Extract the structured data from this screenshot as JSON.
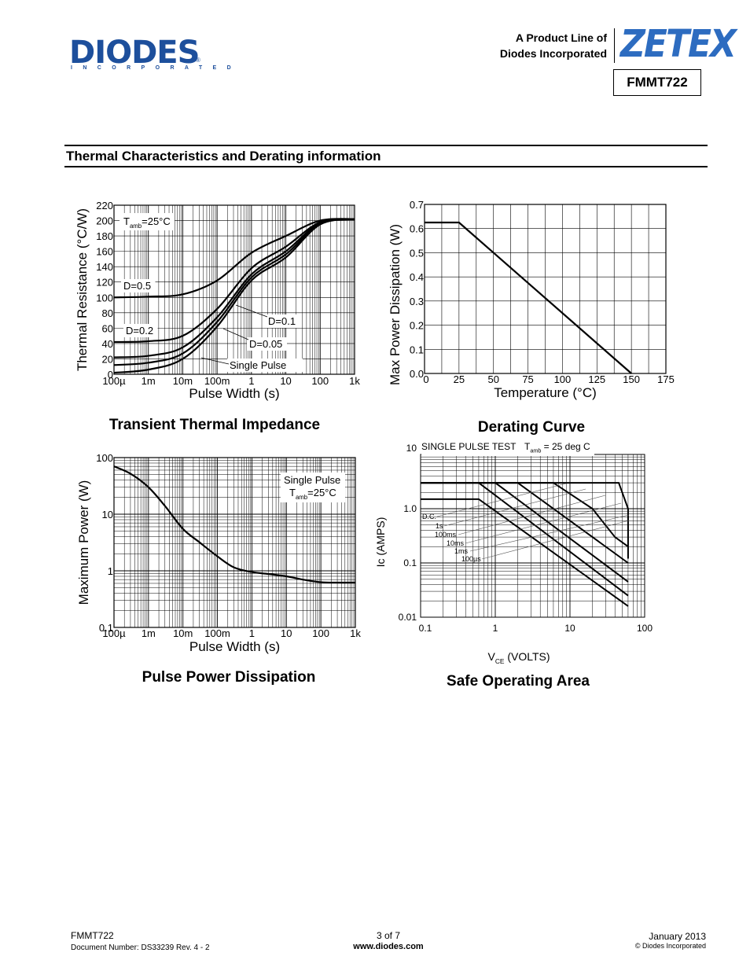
{
  "header": {
    "logo_text": "DIODES",
    "logo_subtext": "INCORPORATED",
    "logo_registered": "®",
    "product_line_1": "A Product Line of",
    "product_line_2": "Diodes Incorporated",
    "brand": "ZETEX",
    "part_number": "FMMT722"
  },
  "section_title": "Thermal Characteristics and Derating information",
  "colors": {
    "diodes_blue": "#1d4f9c",
    "zetex_blue": "#2d6cc0",
    "grid": "#000000"
  },
  "chart_data": [
    {
      "id": "transient_thermal_impedance",
      "type": "line",
      "title": "Transient Thermal Impedance",
      "xlabel": "Pulse Width (s)",
      "ylabel": "Thermal Resistance (°C/W)",
      "x_scale": "log",
      "xlim": [
        0.0001,
        1000
      ],
      "ylim": [
        0,
        220
      ],
      "x_tick_labels": [
        "100µ",
        "1m",
        "10m",
        "100m",
        "1",
        "10",
        "100",
        "1k"
      ],
      "y_ticks": [
        0,
        20,
        40,
        60,
        80,
        100,
        120,
        140,
        160,
        180,
        200,
        220
      ],
      "condition": {
        "symbol": "T",
        "subscript": "amb",
        "text": "=25°C"
      },
      "series": [
        {
          "name": "D=0.5",
          "x": [
            0.0001,
            0.001,
            0.01,
            0.1,
            1,
            10,
            100,
            1000
          ],
          "y": [
            100,
            101,
            104,
            122,
            158,
            180,
            200,
            202
          ]
        },
        {
          "name": "D=0.2",
          "x": [
            0.0001,
            0.001,
            0.01,
            0.1,
            1,
            10,
            100,
            1000
          ],
          "y": [
            42,
            43,
            50,
            85,
            138,
            166,
            198,
            202
          ]
        },
        {
          "name": "D=0.1",
          "x": [
            0.0001,
            0.001,
            0.01,
            0.1,
            1,
            10,
            100,
            1000
          ],
          "y": [
            22,
            24,
            35,
            74,
            130,
            160,
            197,
            202
          ]
        },
        {
          "name": "D=0.05",
          "x": [
            0.0001,
            0.001,
            0.01,
            0.1,
            1,
            10,
            100,
            1000
          ],
          "y": [
            12,
            15,
            27,
            68,
            126,
            156,
            196,
            202
          ]
        },
        {
          "name": "Single Pulse",
          "x": [
            0.0001,
            0.001,
            0.01,
            0.1,
            1,
            10,
            100,
            1000
          ],
          "y": [
            2,
            6,
            20,
            62,
            122,
            152,
            195,
            202
          ]
        }
      ]
    },
    {
      "id": "derating_curve",
      "type": "line",
      "title": "Derating Curve",
      "xlabel": "Temperature (°C)",
      "ylabel": "Max Power Dissipation (W)",
      "xlim": [
        0,
        175
      ],
      "ylim": [
        0,
        0.7
      ],
      "x_ticks": [
        0,
        25,
        50,
        75,
        100,
        125,
        150,
        175
      ],
      "y_ticks": [
        0.0,
        0.1,
        0.2,
        0.3,
        0.4,
        0.5,
        0.6,
        0.7
      ],
      "x_tick_labels": [
        "0",
        "25",
        "50",
        "75",
        "100",
        "125",
        "150",
        "175"
      ],
      "y_tick_labels": [
        "0.0",
        "0.1",
        "0.2",
        "0.3",
        "0.4",
        "0.5",
        "0.6",
        "0.7"
      ],
      "series": [
        {
          "x": [
            0,
            25,
            150
          ],
          "y": [
            0.625,
            0.625,
            0
          ]
        }
      ]
    },
    {
      "id": "pulse_power_dissipation",
      "type": "line",
      "title": "Pulse Power Dissipation",
      "xlabel": "Pulse Width (s)",
      "ylabel": "Maximum Power (W)",
      "x_scale": "log",
      "y_scale": "log",
      "xlim": [
        0.0001,
        1000
      ],
      "ylim": [
        0.1,
        100
      ],
      "x_tick_labels": [
        "100µ",
        "1m",
        "10m",
        "100m",
        "1",
        "10",
        "100",
        "1k"
      ],
      "y_tick_labels": [
        "0.1",
        "1",
        "10",
        "100"
      ],
      "condition_1": "Single Pulse",
      "condition_2": {
        "symbol": "T",
        "subscript": "amb",
        "text": "=25°C"
      },
      "series": [
        {
          "x": [
            0.0001,
            0.0003,
            0.001,
            0.003,
            0.01,
            0.03,
            0.1,
            0.3,
            1,
            3,
            10,
            30,
            100,
            300,
            1000
          ],
          "y": [
            70,
            52,
            30,
            14,
            5.5,
            3.2,
            1.8,
            1.15,
            0.95,
            0.88,
            0.8,
            0.7,
            0.63,
            0.62,
            0.62
          ]
        }
      ]
    },
    {
      "id": "safe_operating_area",
      "type": "line",
      "title": "Safe Operating Area",
      "xlabel_main": "V",
      "xlabel_sub": "CE",
      "xlabel_rest": " (VOLTS)",
      "ylabel": "Ic (AMPS)",
      "x_scale": "log",
      "y_scale": "log",
      "xlim": [
        0.1,
        100
      ],
      "ylim": [
        0.01,
        10
      ],
      "x_tick_labels": [
        "0.1",
        "1",
        "10",
        "100"
      ],
      "y_tick_labels": [
        "0.01",
        "0.1",
        "1.0",
        "10"
      ],
      "header_text": "SINGLE PULSE TEST",
      "header_condition": {
        "symbol": "T",
        "subscript": "amb",
        "text": " = 25 deg C"
      },
      "series": [
        {
          "name": "D.C.",
          "x": [
            0.1,
            0.6,
            60
          ],
          "y": [
            1.5,
            1.5,
            0.016
          ]
        },
        {
          "name": "1s",
          "x": [
            0.1,
            0.6,
            60
          ],
          "y": [
            3,
            3,
            0.025
          ]
        },
        {
          "name": "100ms",
          "x": [
            0.1,
            1,
            60
          ],
          "y": [
            3,
            3,
            0.045
          ]
        },
        {
          "name": "10ms",
          "x": [
            0.1,
            2,
            60
          ],
          "y": [
            3,
            3,
            0.1
          ]
        },
        {
          "name": "1ms",
          "x": [
            0.1,
            6,
            20,
            40,
            60
          ],
          "y": [
            3,
            3,
            1.0,
            0.3,
            0.2
          ]
        },
        {
          "name": "100µs",
          "x": [
            0.1,
            45,
            60,
            60
          ],
          "y": [
            3,
            3,
            1.0,
            0.12
          ]
        }
      ]
    }
  ],
  "footer": {
    "part": "FMMT722",
    "doc_number": "Document Number:  DS33239 Rev. 4 - 2",
    "page": "3 of 7",
    "website": "www.diodes.com",
    "date": "January 2013",
    "copyright": "© Diodes Incorporated"
  }
}
